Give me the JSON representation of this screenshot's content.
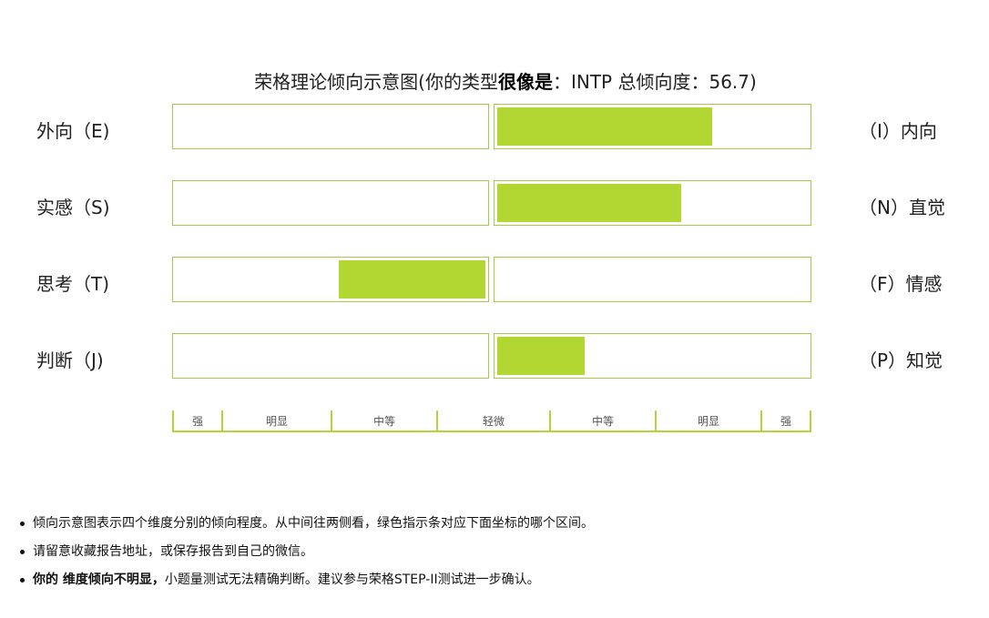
{
  "header": {
    "title_prefix": "荣格理论倾向示意图(你的类型",
    "title_bold": "很像是",
    "title_suffix": "：INTP 总倾向度：56.7)"
  },
  "chart_data": {
    "type": "bar",
    "title": "荣格理论倾向示意图(你的类型很像是：INTP 总倾向度：56.7)",
    "dimensions": [
      {
        "left": "外向（E)",
        "right": "（I）内向",
        "side": "right",
        "strength": 0.69
      },
      {
        "left": "实感（S)",
        "right": "（N）直觉",
        "side": "right",
        "strength": 0.59
      },
      {
        "left": "思考（T)",
        "right": "（F）情感",
        "side": "left",
        "strength": 0.47
      },
      {
        "left": "判断（J)",
        "right": "（P）知觉",
        "side": "right",
        "strength": 0.28
      }
    ],
    "scale": [
      "强",
      "明显",
      "中等",
      "轻微",
      "中等",
      "明显",
      "强"
    ],
    "colors": {
      "bar": "#b2d732",
      "border": "#a8c84a"
    }
  },
  "notes": [
    {
      "text": "倾向示意图表示四个维度分别的倾向程度。从中间往两侧看，绿色指示条对应下面坐标的哪个区间。"
    },
    {
      "text": "请留意收藏报告地址，或保存报告到自己的微信。"
    },
    {
      "bold": "你的 维度倾向不明显，",
      "text": "小题量测试无法精确判断。建议参与荣格STEP-II测试进一步确认。"
    }
  ]
}
